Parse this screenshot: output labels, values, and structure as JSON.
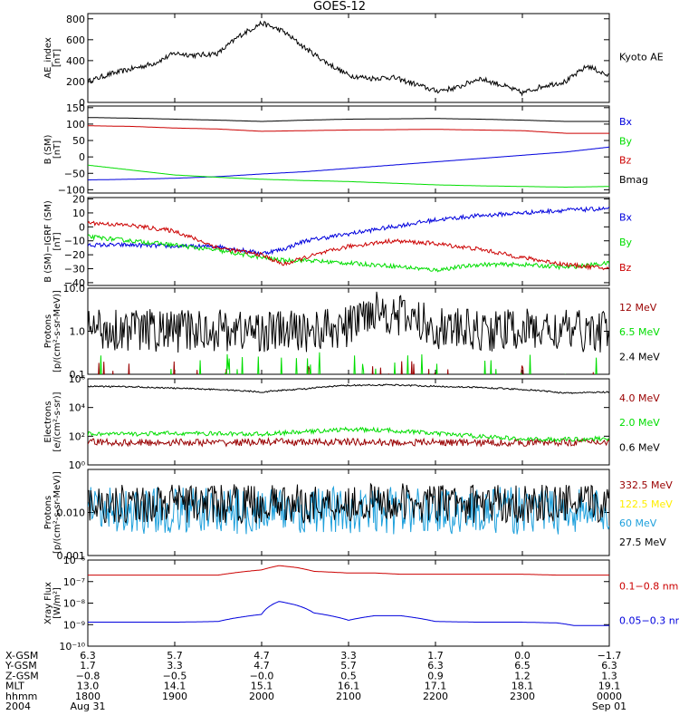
{
  "title": "GOES-12",
  "colors": {
    "black": "#000000",
    "red": "#cc0000",
    "green": "#00dd00",
    "blue": "#0000dd",
    "darkred": "#990000",
    "yellow": "#ffee00",
    "cyan": "#1ea0dc"
  },
  "chart_data": [
    {
      "type": "line",
      "ylabel": "AE_index\n[nT]",
      "scale": "linear",
      "ylim": [
        0,
        850
      ],
      "yticks": [
        {
          "v": 0,
          "l": "0"
        },
        {
          "v": 200,
          "l": "200"
        },
        {
          "v": 400,
          "l": "400"
        },
        {
          "v": 600,
          "l": "600"
        },
        {
          "v": 800,
          "l": "800"
        }
      ],
      "x": [
        0,
        0.25,
        0.5,
        0.75,
        1.0,
        1.25,
        1.5,
        1.75,
        2.0,
        2.25,
        2.5,
        2.75,
        3.0,
        3.25,
        3.5,
        3.75,
        4.0,
        4.25,
        4.5,
        4.75,
        5.0,
        5.25,
        5.5,
        5.75,
        6.0
      ],
      "series": [
        {
          "name": "Kyoto AE",
          "color": "black",
          "noise": 25,
          "values": [
            200,
            270,
            320,
            370,
            470,
            450,
            470,
            640,
            760,
            680,
            520,
            380,
            260,
            230,
            240,
            180,
            110,
            140,
            230,
            170,
            90,
            160,
            200,
            350,
            250
          ]
        }
      ]
    },
    {
      "type": "line",
      "ylabel": "B (SM)\n[nT]",
      "scale": "linear",
      "ylim": [
        -110,
        155
      ],
      "yticks": [
        {
          "v": -100,
          "l": "−100"
        },
        {
          "v": -50,
          "l": "−50"
        },
        {
          "v": 0,
          "l": "0"
        },
        {
          "v": 50,
          "l": "50"
        },
        {
          "v": 100,
          "l": "100"
        },
        {
          "v": 150,
          "l": "150"
        }
      ],
      "x": [
        0,
        0.5,
        1.0,
        1.5,
        2.0,
        2.5,
        3.0,
        3.5,
        4.0,
        4.5,
        5.0,
        5.5,
        6.0
      ],
      "series": [
        {
          "name": "Bx",
          "color": "blue",
          "noise": 0,
          "values": [
            -70,
            -68,
            -65,
            -60,
            -52,
            -45,
            -35,
            -25,
            -15,
            -5,
            5,
            15,
            30
          ]
        },
        {
          "name": "By",
          "color": "green",
          "noise": 0,
          "values": [
            -25,
            -40,
            -55,
            -62,
            -68,
            -72,
            -75,
            -80,
            -85,
            -88,
            -90,
            -92,
            -90
          ]
        },
        {
          "name": "Bz",
          "color": "red",
          "noise": 0,
          "values": [
            95,
            93,
            88,
            85,
            78,
            80,
            82,
            83,
            84,
            82,
            80,
            72,
            72
          ]
        },
        {
          "name": "Bmag",
          "color": "black",
          "noise": 0,
          "values": [
            120,
            118,
            115,
            112,
            108,
            112,
            115,
            116,
            117,
            115,
            112,
            108,
            108
          ]
        }
      ]
    },
    {
      "type": "line",
      "ylabel": "B (SM)−IGRF (SM)\n[nT]",
      "scale": "linear",
      "ylim": [
        -42,
        21
      ],
      "yticks": [
        {
          "v": -40,
          "l": "−40"
        },
        {
          "v": -30,
          "l": "−30"
        },
        {
          "v": -20,
          "l": "−20"
        },
        {
          "v": -10,
          "l": "−10"
        },
        {
          "v": 0,
          "l": "0"
        },
        {
          "v": 10,
          "l": "10"
        },
        {
          "v": 20,
          "l": "20"
        }
      ],
      "x": [
        0,
        0.5,
        1.0,
        1.5,
        2.0,
        2.25,
        2.5,
        3.0,
        3.5,
        4.0,
        4.5,
        5.0,
        5.5,
        6.0
      ],
      "series": [
        {
          "name": "Bx",
          "color": "blue",
          "noise": 1.5,
          "values": [
            -13,
            -13,
            -14,
            -14,
            -19,
            -16,
            -10,
            -5,
            0,
            5,
            8,
            10,
            12,
            13
          ]
        },
        {
          "name": "By",
          "color": "green",
          "noise": 1.5,
          "values": [
            -7,
            -10,
            -13,
            -17,
            -22,
            -24,
            -24,
            -26,
            -28,
            -31,
            -27,
            -27,
            -29,
            -26
          ]
        },
        {
          "name": "Bz",
          "color": "red",
          "noise": 1.5,
          "values": [
            3,
            1,
            -3,
            -15,
            -20,
            -27,
            -22,
            -14,
            -10,
            -12,
            -16,
            -22,
            -27,
            -30
          ]
        }
      ]
    },
    {
      "type": "line",
      "ylabel": "Protons\n[p/(cm²-s-sr-MeV)]",
      "scale": "log",
      "ylim": [
        0.1,
        10
      ],
      "yticks": [
        {
          "v": 0.1,
          "l": "0.1"
        },
        {
          "v": 1,
          "l": "1.0"
        },
        {
          "v": 10,
          "l": "10.0"
        }
      ],
      "x": [
        0,
        0.5,
        1.0,
        1.5,
        2.0,
        2.5,
        3.0,
        3.3,
        3.5,
        4.0,
        4.5,
        5.0,
        5.5,
        6.0
      ],
      "series": [
        {
          "name": "12 MeV",
          "color": "darkred",
          "noise": 0.3,
          "sparse": true,
          "values": [
            0.11,
            0.11,
            0.11,
            0.11,
            0.11,
            0.11,
            0.11,
            0.11,
            0.11,
            0.11,
            0.11,
            0.11,
            0.11,
            0.11
          ]
        },
        {
          "name": "6.5 MeV",
          "color": "green",
          "noise": 0.4,
          "sparse": true,
          "values": [
            0.13,
            0.13,
            0.13,
            0.13,
            0.13,
            0.13,
            0.13,
            0.13,
            0.13,
            0.13,
            0.13,
            0.13,
            0.13,
            0.13
          ]
        },
        {
          "name": "2.4 MeV",
          "color": "black",
          "noise": 0.5,
          "values": [
            1.2,
            1.1,
            1.0,
            1.1,
            1.0,
            1.0,
            1.2,
            3.5,
            2.5,
            1.2,
            1.0,
            1.1,
            1.0,
            1.0
          ]
        }
      ]
    },
    {
      "type": "line",
      "ylabel": "Electrons\n[e/(cm²-s-sr)]",
      "scale": "log",
      "ylim": [
        1,
        1000000
      ],
      "yticks": [
        {
          "v": 1,
          "l": "10⁰"
        },
        {
          "v": 100,
          "l": "10²"
        },
        {
          "v": 10000,
          "l": "10⁴"
        },
        {
          "v": 1000000,
          "l": "10⁶"
        }
      ],
      "x": [
        0,
        0.5,
        1.0,
        1.5,
        2.0,
        2.5,
        3.0,
        3.5,
        4.0,
        4.5,
        5.0,
        5.5,
        6.0
      ],
      "series": [
        {
          "name": "4.0 MeV",
          "color": "darkred",
          "noise": 0.25,
          "values": [
            40,
            35,
            38,
            35,
            40,
            38,
            40,
            35,
            38,
            35,
            35,
            38,
            40
          ]
        },
        {
          "name": "2.0 MeV",
          "color": "green",
          "noise": 0.15,
          "values": [
            150,
            140,
            160,
            150,
            140,
            200,
            300,
            250,
            150,
            100,
            60,
            60,
            70
          ]
        },
        {
          "name": "0.6 MeV",
          "color": "black",
          "noise": 0.05,
          "values": [
            300000,
            280000,
            220000,
            180000,
            120000,
            200000,
            350000,
            380000,
            300000,
            250000,
            180000,
            100000,
            120000
          ]
        }
      ]
    },
    {
      "type": "line",
      "ylabel": "Protons\n[p/(cm²-s-sr-MeV)]",
      "scale": "log",
      "ylim": [
        0.001,
        0.1
      ],
      "yticks": [
        {
          "v": 0.001,
          "l": "0.001"
        },
        {
          "v": 0.01,
          "l": "0.010"
        },
        {
          "v": 0.1,
          "l": ""
        }
      ],
      "x": [
        0,
        0.5,
        1.0,
        1.5,
        2.0,
        2.5,
        3.0,
        3.5,
        4.0,
        4.5,
        5.0,
        5.5,
        6.0
      ],
      "series": [
        {
          "name": "332.5 MeV",
          "color": "darkred",
          "noise": 0,
          "hidden": true,
          "values": [
            0.02,
            0.02,
            0.02,
            0.02,
            0.02,
            0.02,
            0.02,
            0.02,
            0.02,
            0.02,
            0.02,
            0.02,
            0.02
          ]
        },
        {
          "name": "122.5 MeV",
          "color": "yellow",
          "noise": 0,
          "hidden": true,
          "values": [
            0.015,
            0.015,
            0.015,
            0.015,
            0.015,
            0.015,
            0.015,
            0.015,
            0.015,
            0.015,
            0.015,
            0.015,
            0.015
          ]
        },
        {
          "name": "60 MeV",
          "color": "cyan",
          "noise": 0.55,
          "values": [
            0.011,
            0.011,
            0.011,
            0.011,
            0.011,
            0.011,
            0.011,
            0.011,
            0.011,
            0.011,
            0.011,
            0.011,
            0.011
          ]
        },
        {
          "name": "27.5 MeV",
          "color": "black",
          "noise": 0.45,
          "values": [
            0.016,
            0.016,
            0.016,
            0.016,
            0.016,
            0.016,
            0.017,
            0.017,
            0.016,
            0.016,
            0.016,
            0.016,
            0.016
          ]
        }
      ]
    },
    {
      "type": "line",
      "ylabel": "Xray Flux\n[W/m²]",
      "scale": "log",
      "ylim": [
        1e-10,
        1e-06
      ],
      "yticks": [
        {
          "v": 1e-10,
          "l": "10⁻¹⁰"
        },
        {
          "v": 1e-09,
          "l": "10⁻⁹"
        },
        {
          "v": 1e-08,
          "l": "10⁻⁸"
        },
        {
          "v": 1e-07,
          "l": "10⁻⁷"
        },
        {
          "v": 1e-06,
          "l": "10⁻⁶"
        }
      ],
      "x": [
        0,
        0.5,
        1.0,
        1.5,
        2.0,
        2.2,
        2.4,
        2.6,
        3.0,
        3.3,
        3.6,
        4.0,
        4.5,
        5.0,
        5.4,
        5.6,
        6.0
      ],
      "series": [
        {
          "name": "0.1−0.8 nm",
          "color": "red",
          "noise": 0,
          "values": [
            2e-07,
            2e-07,
            2e-07,
            2e-07,
            3.5e-07,
            5.5e-07,
            4.5e-07,
            3e-07,
            2.5e-07,
            2.5e-07,
            2.2e-07,
            2.2e-07,
            2.2e-07,
            2.2e-07,
            2e-07,
            2e-07,
            2e-07
          ]
        },
        {
          "name": "0.05−0.3 nm",
          "color": "blue",
          "noise": 0,
          "values": [
            1.3e-09,
            1.3e-09,
            1.3e-09,
            1.4e-09,
            3e-09,
            1.2e-08,
            8e-09,
            3.5e-09,
            1.6e-09,
            2.6e-09,
            2.6e-09,
            1.4e-09,
            1.3e-09,
            1.3e-09,
            1.2e-09,
            9e-10,
            9e-10
          ]
        }
      ]
    }
  ],
  "xaxis": {
    "row_labels": [
      "X-GSM",
      "Y-GSM",
      "Z-GSM",
      "MLT",
      "hhmm",
      "2004"
    ],
    "columns": [
      {
        "t": 0,
        "values": [
          "6.3",
          "1.7",
          "−0.8",
          "13.0",
          "1800",
          "Aug 31"
        ]
      },
      {
        "t": 1,
        "values": [
          "5.7",
          "3.3",
          "−0.5",
          "14.1",
          "1900",
          ""
        ]
      },
      {
        "t": 2,
        "values": [
          "4.7",
          "4.7",
          "−0.0",
          "15.1",
          "2000",
          ""
        ]
      },
      {
        "t": 3,
        "values": [
          "3.3",
          "5.7",
          "0.5",
          "16.1",
          "2100",
          ""
        ]
      },
      {
        "t": 4,
        "values": [
          "1.7",
          "6.3",
          "0.9",
          "17.1",
          "2200",
          ""
        ]
      },
      {
        "t": 5,
        "values": [
          "0.0",
          "6.5",
          "1.2",
          "18.1",
          "2300",
          ""
        ]
      },
      {
        "t": 6,
        "values": [
          "−1.7",
          "6.3",
          "1.3",
          "19.1",
          "0000",
          "Sep 01"
        ]
      }
    ]
  }
}
